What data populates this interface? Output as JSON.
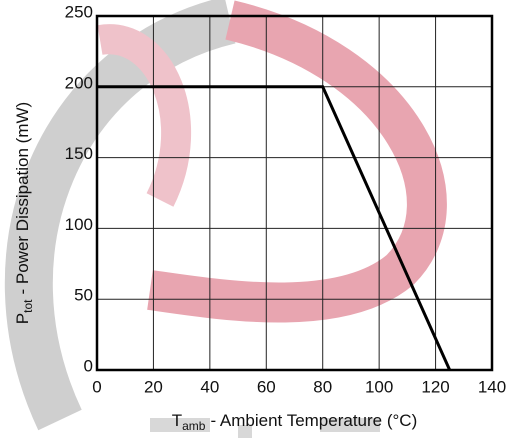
{
  "chart_data": {
    "type": "line",
    "xlabel": {
      "symbol": "T",
      "subscript": "amb",
      "text": "- Ambient Temperature (°C)"
    },
    "ylabel": {
      "symbol": "P",
      "subscript": "tot",
      "text": "- Power Dissipation (mW)"
    },
    "x": [
      0,
      80,
      125
    ],
    "values": [
      200,
      200,
      0
    ],
    "color": "#000000",
    "xlim": [
      0,
      140
    ],
    "xticks": [
      0,
      20,
      40,
      60,
      80,
      100,
      120,
      140
    ],
    "ylim": [
      0,
      250
    ],
    "yticks": [
      0,
      50,
      100,
      150,
      200,
      250
    ],
    "grid": true
  }
}
